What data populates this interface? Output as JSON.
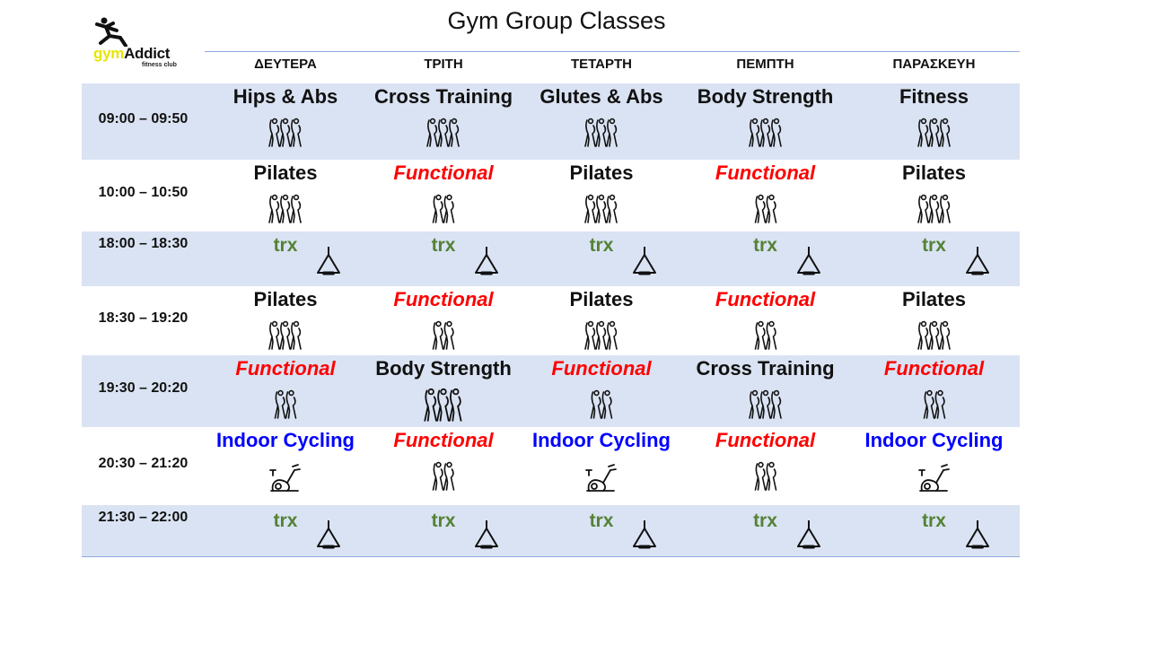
{
  "title": "Gym Group Classes",
  "logo": {
    "gym": "gym",
    "addict": "Addict",
    "sub": "fitness club"
  },
  "days": [
    "ΔΕΥΤΕΡΑ",
    "ΤΡΙΤΗ",
    "ΤΕΤΑΡΤΗ",
    "ΠΕΜΠΤΗ",
    "ΠΑΡΑΣΚΕΥΗ"
  ],
  "colors": {
    "shade": "#dae3f3",
    "functional": "#ff0000",
    "cycling": "#0000ff",
    "trx": "#548235",
    "rule": "#8eaadb"
  },
  "rows": [
    {
      "time": "09:00 – 09:50",
      "shaded": true,
      "cells": [
        {
          "name": "Hips & Abs",
          "kind": "normal",
          "icon": "group3-icon"
        },
        {
          "name": "Cross Training",
          "kind": "normal",
          "icon": "group3-icon"
        },
        {
          "name": "Glutes & Abs",
          "kind": "normal",
          "icon": "group3-icon"
        },
        {
          "name": "Body Strength",
          "kind": "normal",
          "icon": "group3-icon"
        },
        {
          "name": "Fitness",
          "kind": "normal",
          "icon": "group3-icon"
        }
      ]
    },
    {
      "time": "10:00 – 10:50",
      "shaded": false,
      "cells": [
        {
          "name": "Pilates",
          "kind": "normal",
          "icon": "group3-icon"
        },
        {
          "name": "Functional",
          "kind": "functional",
          "icon": "group2-icon"
        },
        {
          "name": "Pilates",
          "kind": "normal",
          "icon": "group3-icon"
        },
        {
          "name": "Functional",
          "kind": "functional",
          "icon": "group2-icon"
        },
        {
          "name": "Pilates",
          "kind": "normal",
          "icon": "group3-icon"
        }
      ]
    },
    {
      "time": "18:00 – 18:30",
      "shaded": true,
      "cells": [
        {
          "name": "trx",
          "kind": "trx",
          "icon": "trx-icon"
        },
        {
          "name": "trx",
          "kind": "trx",
          "icon": "trx-icon"
        },
        {
          "name": "trx",
          "kind": "trx",
          "icon": "trx-icon"
        },
        {
          "name": "trx",
          "kind": "trx",
          "icon": "trx-icon"
        },
        {
          "name": "trx",
          "kind": "trx",
          "icon": "trx-icon"
        }
      ]
    },
    {
      "time": "18:30 – 19:20",
      "shaded": false,
      "cells": [
        {
          "name": "Pilates",
          "kind": "normal",
          "icon": "group3-icon"
        },
        {
          "name": "Functional",
          "kind": "functional",
          "icon": "group2-icon"
        },
        {
          "name": "Pilates",
          "kind": "normal",
          "icon": "group3-icon"
        },
        {
          "name": "Functional",
          "kind": "functional",
          "icon": "group2-icon"
        },
        {
          "name": "Pilates",
          "kind": "normal",
          "icon": "group3-icon"
        }
      ]
    },
    {
      "time": "19:30 – 20:20",
      "shaded": true,
      "cells": [
        {
          "name": "Functional",
          "kind": "functional",
          "icon": "group2-icon"
        },
        {
          "name": "Body Strength",
          "kind": "normal",
          "icon": "group3-icon"
        },
        {
          "name": "Functional",
          "kind": "functional",
          "icon": "group2-icon"
        },
        {
          "name": "Cross Training",
          "kind": "normal",
          "icon": "group3-icon"
        },
        {
          "name": "Functional",
          "kind": "functional",
          "icon": "group2-icon"
        }
      ]
    },
    {
      "time": "20:30 – 21:20",
      "shaded": false,
      "cells": [
        {
          "name": "Indoor Cycling",
          "kind": "cycling",
          "icon": "bike-icon"
        },
        {
          "name": "Functional",
          "kind": "functional",
          "icon": "group2-icon"
        },
        {
          "name": "Indoor Cycling",
          "kind": "cycling",
          "icon": "bike-icon"
        },
        {
          "name": "Functional",
          "kind": "functional",
          "icon": "group2-icon"
        },
        {
          "name": "Indoor Cycling",
          "kind": "cycling",
          "icon": "bike-icon"
        }
      ]
    },
    {
      "time": "21:30 – 22:00",
      "shaded": true,
      "cells": [
        {
          "name": "trx",
          "kind": "trx",
          "icon": "trx-icon"
        },
        {
          "name": "trx",
          "kind": "trx",
          "icon": "trx-icon"
        },
        {
          "name": "trx",
          "kind": "trx",
          "icon": "trx-icon"
        },
        {
          "name": "trx",
          "kind": "trx",
          "icon": "trx-icon"
        },
        {
          "name": "trx",
          "kind": "trx",
          "icon": "trx-icon"
        }
      ]
    }
  ]
}
